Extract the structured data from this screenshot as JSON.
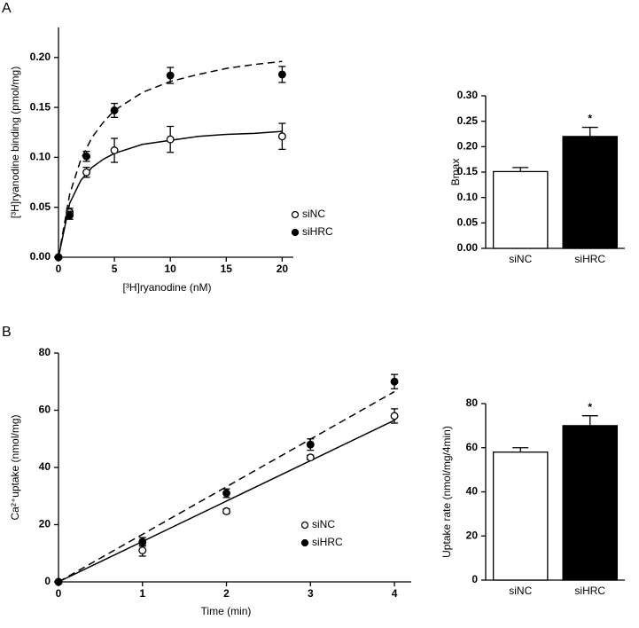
{
  "chart_data": [
    {
      "type": "scatter",
      "panel_label": "A",
      "ylabel": "[³H]ryanodine binding (pmol/mg)",
      "xlabel": "[³H]ryanodine (nM)",
      "x": [
        0,
        1,
        2.5,
        5,
        10,
        20
      ],
      "series": [
        {
          "name": "siNC",
          "marker": "open",
          "color": "#000000",
          "values": [
            0,
            0.045,
            0.085,
            0.107,
            0.118,
            0.121
          ],
          "errors": [
            0,
            0.004,
            0.005,
            0.012,
            0.013,
            0.013
          ]
        },
        {
          "name": "siHRC",
          "marker": "filled",
          "color": "#000000",
          "values": [
            0,
            0.042,
            0.101,
            0.147,
            0.182,
            0.183
          ],
          "errors": [
            0,
            0.004,
            0.005,
            0.007,
            0.008,
            0.008
          ]
        }
      ],
      "fits": [
        {
          "dash": false,
          "x": [
            0,
            1,
            2,
            3,
            4,
            5,
            7.5,
            10,
            12.5,
            15,
            17.5,
            20
          ],
          "values": [
            0,
            0.054,
            0.077,
            0.09,
            0.098,
            0.104,
            0.113,
            0.117,
            0.121,
            0.123,
            0.124,
            0.126
          ]
        },
        {
          "dash": true,
          "x": [
            0,
            1,
            2,
            3,
            4,
            5,
            7.5,
            10,
            12.5,
            15,
            17.5,
            20
          ],
          "values": [
            0,
            0.063,
            0.098,
            0.12,
            0.135,
            0.147,
            0.165,
            0.176,
            0.183,
            0.189,
            0.193,
            0.196
          ]
        }
      ],
      "xlim": [
        0,
        21
      ],
      "xticks": [
        0,
        5,
        10,
        15,
        20
      ],
      "ylim": [
        0,
        0.23
      ],
      "yticks": [
        {
          "value": 0,
          "label": "0.00"
        },
        {
          "value": 0.05,
          "label": "0.05"
        },
        {
          "value": 0.1,
          "label": "0.10"
        },
        {
          "value": 0.15,
          "label": "0.15"
        },
        {
          "value": 0.2,
          "label": "0.20"
        }
      ],
      "legend": "lower right"
    },
    {
      "type": "bar",
      "ylabel": "Bmax",
      "categories": [
        "siNC",
        "siHRC"
      ],
      "values": [
        0.151,
        0.22
      ],
      "errors": [
        0.008,
        0.018
      ],
      "colors": [
        "#ffffff",
        "#000000"
      ],
      "annotations": [
        null,
        "*"
      ],
      "ylim": [
        0,
        0.3
      ],
      "yticks": [
        {
          "value": 0,
          "label": "0.00"
        },
        {
          "value": 0.05,
          "label": "0.05"
        },
        {
          "value": 0.1,
          "label": "0.10"
        },
        {
          "value": 0.15,
          "label": "0.15"
        },
        {
          "value": 0.2,
          "label": "0.20"
        },
        {
          "value": 0.25,
          "label": "0.25"
        },
        {
          "value": 0.3,
          "label": "0.30"
        }
      ]
    },
    {
      "type": "scatter",
      "panel_label": "B",
      "ylabel": "Ca²⁺uptake (nmol/mg)",
      "xlabel": "Time (min)",
      "x": [
        0,
        1,
        2,
        3,
        4
      ],
      "series": [
        {
          "name": "siNC",
          "marker": "open",
          "color": "#000000",
          "values": [
            0,
            11,
            24.7,
            43.5,
            58
          ],
          "errors": [
            0,
            2,
            0.8,
            0.8,
            2.5
          ]
        },
        {
          "name": "siHRC",
          "marker": "filled",
          "color": "#000000",
          "values": [
            0,
            14,
            31,
            48,
            70
          ],
          "errors": [
            0,
            1.5,
            1.5,
            2,
            2.5
          ]
        }
      ],
      "fits": [
        {
          "dash": false,
          "x": [
            0,
            4
          ],
          "values": [
            0,
            56.5
          ]
        },
        {
          "dash": true,
          "x": [
            0,
            4
          ],
          "values": [
            0,
            66.5
          ]
        }
      ],
      "xlim": [
        0,
        4.2
      ],
      "xticks": [
        0,
        1,
        2,
        3,
        4
      ],
      "ylim": [
        0,
        80
      ],
      "yticks": [
        0,
        20,
        40,
        60,
        80
      ],
      "legend": "lower right"
    },
    {
      "type": "bar",
      "ylabel": "Uptake rate (nmol/mg/4min)",
      "categories": [
        "siNC",
        "siHRC"
      ],
      "values": [
        58,
        70
      ],
      "errors": [
        2,
        4.5
      ],
      "colors": [
        "#ffffff",
        "#000000"
      ],
      "annotations": [
        null,
        "*"
      ],
      "ylim": [
        0,
        80
      ],
      "yticks": [
        0,
        20,
        40,
        60,
        80
      ]
    }
  ]
}
